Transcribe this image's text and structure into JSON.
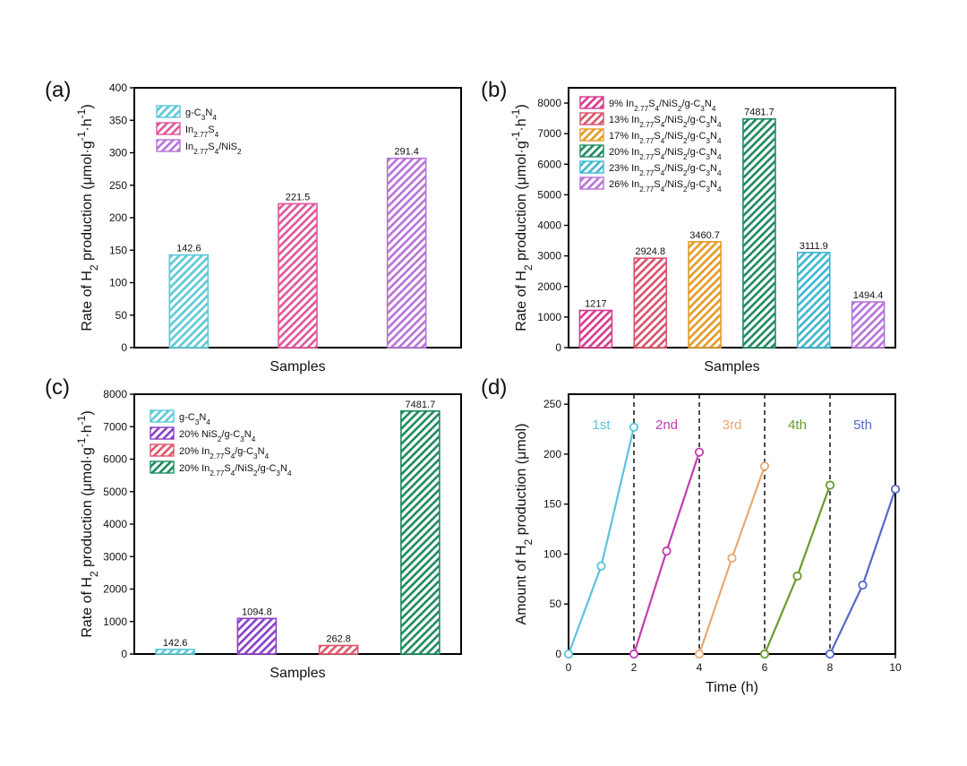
{
  "chart_data": [
    {
      "panel": "(a)",
      "type": "bar",
      "xlabel": "Samples",
      "ylabel_parts": [
        "Rate of H",
        "2",
        " production (μmol·g",
        "-1",
        "·h",
        "-1",
        ")"
      ],
      "ylim": [
        0,
        400
      ],
      "yticks": [
        0,
        50,
        100,
        150,
        200,
        250,
        300,
        350,
        400
      ],
      "series": [
        {
          "legend": [
            {
              "t": "g-C"
            },
            {
              "t": "3",
              "s": "sub"
            },
            {
              "t": "N"
            },
            {
              "t": "4",
              "s": "sub"
            }
          ],
          "value": 142.6,
          "label": "142.6",
          "color": "#5cc8d8"
        },
        {
          "legend": [
            {
              "t": "In"
            },
            {
              "t": "2.77",
              "s": "sub"
            },
            {
              "t": "S"
            },
            {
              "t": "4",
              "s": "sub"
            }
          ],
          "value": 221.5,
          "label": "221.5",
          "color": "#e0559a"
        },
        {
          "legend": [
            {
              "t": "In"
            },
            {
              "t": "2.77",
              "s": "sub"
            },
            {
              "t": "S"
            },
            {
              "t": "4",
              "s": "sub"
            },
            {
              "t": "/NiS"
            },
            {
              "t": "2",
              "s": "sub"
            }
          ],
          "value": 291.4,
          "label": "291.4",
          "color": "#b672d8"
        }
      ]
    },
    {
      "panel": "(b)",
      "type": "bar",
      "xlabel": "Samples",
      "ylabel_parts": [
        "Rate of H",
        "2",
        " production (μmol·g",
        "-1",
        "·h",
        "-1",
        ")"
      ],
      "ylim": [
        0,
        8500
      ],
      "yticks": [
        0,
        1000,
        2000,
        3000,
        4000,
        5000,
        6000,
        7000,
        8000
      ],
      "series": [
        {
          "legend": [
            {
              "t": "9% In"
            },
            {
              "t": "2.77",
              "s": "sub"
            },
            {
              "t": "S"
            },
            {
              "t": "4",
              "s": "sub"
            },
            {
              "t": "/NiS"
            },
            {
              "t": "2",
              "s": "sub"
            },
            {
              "t": "/g-C"
            },
            {
              "t": "3",
              "s": "sub"
            },
            {
              "t": "N"
            },
            {
              "t": "4",
              "s": "sub"
            }
          ],
          "value": 1217,
          "label": "1217",
          "color": "#d63a8e"
        },
        {
          "legend": [
            {
              "t": "13% In"
            },
            {
              "t": "2.77",
              "s": "sub"
            },
            {
              "t": "S"
            },
            {
              "t": "4",
              "s": "sub"
            },
            {
              "t": "/NiS"
            },
            {
              "t": "2",
              "s": "sub"
            },
            {
              "t": "/g-C"
            },
            {
              "t": "3",
              "s": "sub"
            },
            {
              "t": "N"
            },
            {
              "t": "4",
              "s": "sub"
            }
          ],
          "value": 2924.8,
          "label": "2924.8",
          "color": "#d9526a"
        },
        {
          "legend": [
            {
              "t": "17% In"
            },
            {
              "t": "2.77",
              "s": "sub"
            },
            {
              "t": "S"
            },
            {
              "t": "4",
              "s": "sub"
            },
            {
              "t": "/NiS"
            },
            {
              "t": "2",
              "s": "sub"
            },
            {
              "t": "/g-C"
            },
            {
              "t": "3",
              "s": "sub"
            },
            {
              "t": "N"
            },
            {
              "t": "4",
              "s": "sub"
            }
          ],
          "value": 3460.7,
          "label": "3460.7",
          "color": "#e39a24"
        },
        {
          "legend": [
            {
              "t": "20% In"
            },
            {
              "t": "2.77",
              "s": "sub"
            },
            {
              "t": "S"
            },
            {
              "t": "4",
              "s": "sub"
            },
            {
              "t": "/NiS"
            },
            {
              "t": "2",
              "s": "sub"
            },
            {
              "t": "/g-C"
            },
            {
              "t": "3",
              "s": "sub"
            },
            {
              "t": "N"
            },
            {
              "t": "4",
              "s": "sub"
            }
          ],
          "value": 7481.7,
          "label": "7481.7",
          "color": "#1e8a5e"
        },
        {
          "legend": [
            {
              "t": "23% In"
            },
            {
              "t": "2.77",
              "s": "sub"
            },
            {
              "t": "S"
            },
            {
              "t": "4",
              "s": "sub"
            },
            {
              "t": "/NiS"
            },
            {
              "t": "2",
              "s": "sub"
            },
            {
              "t": "/g-C"
            },
            {
              "t": "3",
              "s": "sub"
            },
            {
              "t": "N"
            },
            {
              "t": "4",
              "s": "sub"
            }
          ],
          "value": 3111.9,
          "label": "3111.9",
          "color": "#3cb6d0"
        },
        {
          "legend": [
            {
              "t": "26% In"
            },
            {
              "t": "2.77",
              "s": "sub"
            },
            {
              "t": "S"
            },
            {
              "t": "4",
              "s": "sub"
            },
            {
              "t": "/NiS"
            },
            {
              "t": "2",
              "s": "sub"
            },
            {
              "t": "/g-C"
            },
            {
              "t": "3",
              "s": "sub"
            },
            {
              "t": "N"
            },
            {
              "t": "4",
              "s": "sub"
            }
          ],
          "value": 1494.4,
          "label": "1494.4",
          "color": "#b672d8"
        }
      ]
    },
    {
      "panel": "(c)",
      "type": "bar",
      "xlabel": "Samples",
      "ylabel_parts": [
        "Rate of H",
        "2",
        " production (μmol·g",
        "-1",
        "·h",
        "-1",
        ")"
      ],
      "ylim": [
        0,
        8000
      ],
      "yticks": [
        0,
        1000,
        2000,
        3000,
        4000,
        5000,
        6000,
        7000,
        8000
      ],
      "series": [
        {
          "legend": [
            {
              "t": "g-C"
            },
            {
              "t": "3",
              "s": "sub"
            },
            {
              "t": "N"
            },
            {
              "t": "4",
              "s": "sub"
            }
          ],
          "value": 142.6,
          "label": "142.6",
          "color": "#5cc8d8"
        },
        {
          "legend": [
            {
              "t": "20% NiS"
            },
            {
              "t": "2",
              "s": "sub"
            },
            {
              "t": "/g-C"
            },
            {
              "t": "3",
              "s": "sub"
            },
            {
              "t": "N"
            },
            {
              "t": "4",
              "s": "sub"
            }
          ],
          "value": 1094.8,
          "label": "1094.8",
          "color": "#8a3fc8"
        },
        {
          "legend": [
            {
              "t": "20% In"
            },
            {
              "t": "2.77",
              "s": "sub"
            },
            {
              "t": "S"
            },
            {
              "t": "4",
              "s": "sub"
            },
            {
              "t": "/g-C"
            },
            {
              "t": "3",
              "s": "sub"
            },
            {
              "t": "N"
            },
            {
              "t": "4",
              "s": "sub"
            }
          ],
          "value": 262.8,
          "label": "262.8",
          "color": "#e0556a"
        },
        {
          "legend": [
            {
              "t": "20% In"
            },
            {
              "t": "2.77",
              "s": "sub"
            },
            {
              "t": "S"
            },
            {
              "t": "4",
              "s": "sub"
            },
            {
              "t": "/NiS"
            },
            {
              "t": "2",
              "s": "sub"
            },
            {
              "t": "/g-C"
            },
            {
              "t": "3",
              "s": "sub"
            },
            {
              "t": "N"
            },
            {
              "t": "4",
              "s": "sub"
            }
          ],
          "value": 7481.7,
          "label": "7481.7",
          "color": "#1e8a5e"
        }
      ]
    },
    {
      "panel": "(d)",
      "type": "line",
      "xlabel": "Time (h)",
      "ylabel_parts": [
        "Amount of H",
        "2",
        " production (μmol)"
      ],
      "xlim": [
        0,
        10
      ],
      "ylim": [
        0,
        260
      ],
      "xticks": [
        0,
        2,
        4,
        6,
        8,
        10
      ],
      "yticks": [
        0,
        50,
        100,
        150,
        200,
        250
      ],
      "dividers": [
        2,
        4,
        6,
        8
      ],
      "series": [
        {
          "name": "1st",
          "color": "#5bc2df",
          "x": [
            0,
            1,
            2
          ],
          "y": [
            0,
            88,
            227
          ]
        },
        {
          "name": "2nd",
          "color": "#c43cb0",
          "x": [
            4,
            3,
            2
          ],
          "y": [
            202,
            103,
            0
          ],
          "order": "reverse"
        },
        {
          "name": "3rd",
          "color": "#e8a872",
          "x": [
            4,
            5,
            6
          ],
          "y": [
            0,
            96,
            188
          ]
        },
        {
          "name": "4th",
          "color": "#6a9a2a",
          "x": [
            6,
            7,
            8
          ],
          "y": [
            0,
            78,
            169
          ]
        },
        {
          "name": "5th",
          "color": "#5568c8",
          "x": [
            8,
            9,
            10
          ],
          "y": [
            0,
            69,
            165
          ]
        }
      ]
    }
  ]
}
